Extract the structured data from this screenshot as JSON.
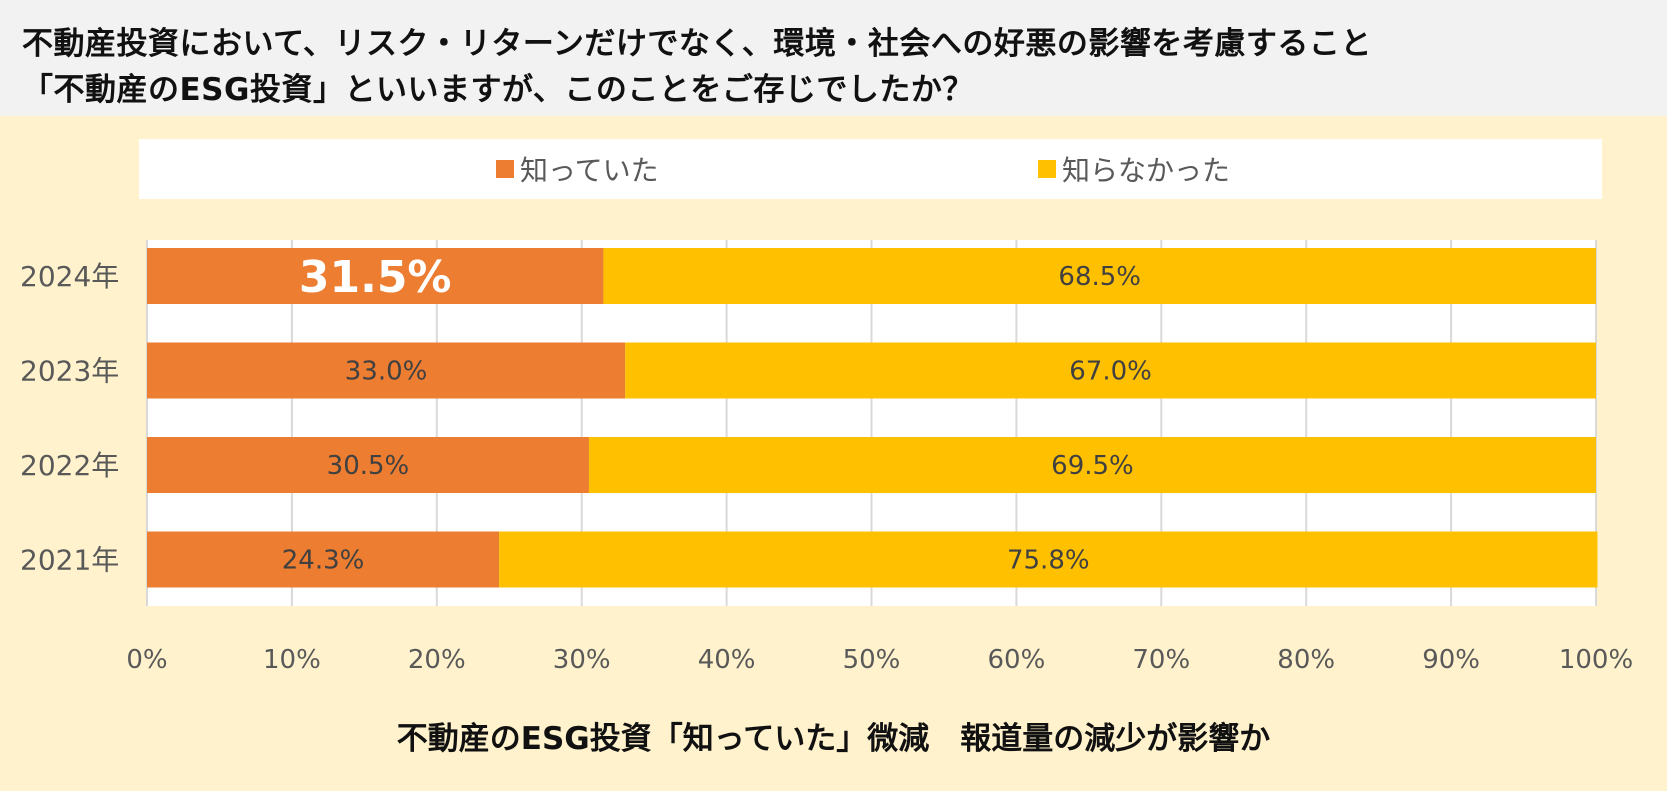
{
  "title": {
    "line1": "不動産投資において、リスク・リターンだけでなく、環境・社会への好悪の影響を考慮すること",
    "line2": "「不動産のESG投資」といいますが、このことをご存じでしたか？"
  },
  "subtitle": "不動産のESG投資「知っていた」微減　報道量の減少が影響か",
  "colors": {
    "known": "#ED7D31",
    "unknown": "#FFC000",
    "plot_bg": "#FFFFFF",
    "page_bg": "#FFF2CC",
    "grid": "#D9D9D9"
  },
  "chart_data": {
    "type": "bar",
    "orientation": "horizontal",
    "stacked": true,
    "percent": true,
    "categories": [
      "2024年",
      "2023年",
      "2022年",
      "2021年"
    ],
    "series": [
      {
        "name": "知っていた",
        "values": [
          31.5,
          33.0,
          30.5,
          24.3
        ],
        "labels": [
          "31.5%",
          "33.0%",
          "30.5%",
          "24.3%"
        ]
      },
      {
        "name": "知らなかった",
        "values": [
          68.5,
          67.0,
          69.5,
          75.8
        ],
        "labels": [
          "68.5%",
          "67.0%",
          "69.5%",
          "75.8%"
        ]
      }
    ],
    "highlight": {
      "category": "2024年",
      "series": "知っていた"
    },
    "xlim": [
      0,
      100
    ],
    "xticks": [
      0,
      10,
      20,
      30,
      40,
      50,
      60,
      70,
      80,
      90,
      100
    ],
    "xtick_labels": [
      "0%",
      "10%",
      "20%",
      "30%",
      "40%",
      "50%",
      "60%",
      "70%",
      "80%",
      "90%",
      "100%"
    ],
    "grid": true,
    "legend": "top"
  }
}
